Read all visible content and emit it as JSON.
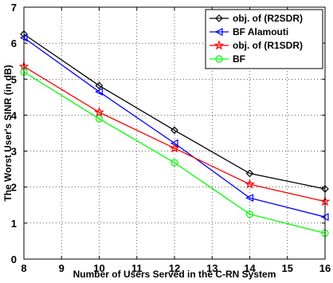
{
  "chart_data": {
    "type": "line",
    "title": "",
    "xlabel": "Number of Users Served in the C-RN System",
    "ylabel": "The Worst User's SINR (in dB)",
    "xlim": [
      8,
      16
    ],
    "ylim": [
      0,
      7
    ],
    "xticks": [
      8,
      9,
      10,
      11,
      12,
      13,
      14,
      15,
      16
    ],
    "yticks": [
      0,
      1,
      2,
      3,
      4,
      5,
      6,
      7
    ],
    "grid": true,
    "legend_position": "top-right",
    "x": [
      8,
      10,
      12,
      14,
      16
    ],
    "series": [
      {
        "name": "obj. of (R2SDR)",
        "color": "#000000",
        "marker": "diamond",
        "values": [
          6.25,
          4.82,
          3.58,
          2.38,
          1.95
        ]
      },
      {
        "name": "BF Alamouti",
        "color": "#0000ff",
        "marker": "triangle-left",
        "values": [
          6.15,
          4.65,
          3.22,
          1.7,
          1.17
        ]
      },
      {
        "name": "obj. of (R1SDR)",
        "color": "#ff0000",
        "marker": "star",
        "values": [
          5.35,
          4.08,
          3.08,
          2.08,
          1.6
        ]
      },
      {
        "name": "BF",
        "color": "#00ff00",
        "marker": "circle",
        "values": [
          5.2,
          3.9,
          2.68,
          1.25,
          0.72
        ]
      }
    ]
  }
}
